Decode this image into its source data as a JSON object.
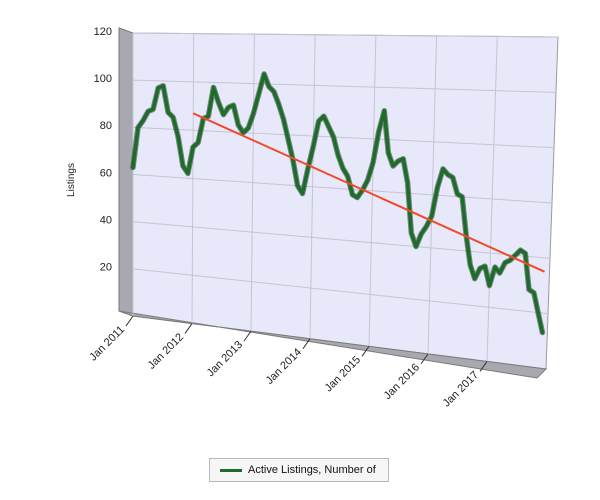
{
  "chart_data": {
    "type": "line",
    "title": "",
    "xlabel": "",
    "ylabel": "Listings",
    "ylim": [
      0,
      120
    ],
    "yticks": [
      20,
      40,
      60,
      80,
      100,
      120
    ],
    "xticks": [
      "Jan 2011",
      "Jan 2012",
      "Jan 2013",
      "Jan 2014",
      "Jan 2015",
      "Jan 2016",
      "Jan 2017"
    ],
    "grid": true,
    "legend_position": "bottom",
    "series": [
      {
        "name": "Active Listings, Number of",
        "color": "#1e6b2a",
        "x": [
          "2011-01",
          "2011-02",
          "2011-03",
          "2011-04",
          "2011-05",
          "2011-06",
          "2011-07",
          "2011-08",
          "2011-09",
          "2011-10",
          "2011-11",
          "2011-12",
          "2012-01",
          "2012-02",
          "2012-03",
          "2012-04",
          "2012-05",
          "2012-06",
          "2012-07",
          "2012-08",
          "2012-09",
          "2012-10",
          "2012-11",
          "2012-12",
          "2013-01",
          "2013-02",
          "2013-03",
          "2013-04",
          "2013-05",
          "2013-06",
          "2013-07",
          "2013-08",
          "2013-09",
          "2013-10",
          "2013-11",
          "2013-12",
          "2014-01",
          "2014-02",
          "2014-03",
          "2014-04",
          "2014-05",
          "2014-06",
          "2014-07",
          "2014-08",
          "2014-09",
          "2014-10",
          "2014-11",
          "2014-12",
          "2015-01",
          "2015-02",
          "2015-03",
          "2015-04",
          "2015-05",
          "2015-06",
          "2015-07",
          "2015-08",
          "2015-09",
          "2015-10",
          "2015-11",
          "2015-12",
          "2016-01",
          "2016-02",
          "2016-03",
          "2016-04",
          "2016-05",
          "2016-06",
          "2016-07",
          "2016-08",
          "2016-09",
          "2016-10",
          "2016-11",
          "2016-12",
          "2017-01",
          "2017-02",
          "2017-03",
          "2017-04",
          "2017-05",
          "2017-06",
          "2017-07",
          "2017-08",
          "2017-09",
          "2017-10",
          "2017-11",
          "2017-12"
        ],
        "values": [
          63,
          80,
          83,
          87,
          88,
          97,
          98,
          87,
          85,
          77,
          65,
          62,
          73,
          75,
          85,
          86,
          98,
          92,
          87,
          90,
          91,
          83,
          80,
          82,
          88,
          96,
          104,
          99,
          97,
          92,
          86,
          78,
          70,
          60,
          57,
          67,
          76,
          86,
          88,
          84,
          80,
          73,
          68,
          65,
          58,
          57,
          60,
          64,
          71,
          83,
          91,
          75,
          70,
          72,
          73,
          64,
          45,
          40,
          45,
          48,
          52,
          63,
          70,
          68,
          67,
          61,
          60,
          46,
          35,
          30,
          34,
          35,
          28,
          35,
          33,
          37,
          38,
          40,
          42,
          41,
          28,
          27,
          20,
          13
        ]
      },
      {
        "name": "",
        "color": "#f04a2a",
        "x": [
          "2012-01",
          "2017-12"
        ],
        "values": [
          87,
          35
        ]
      }
    ]
  }
}
